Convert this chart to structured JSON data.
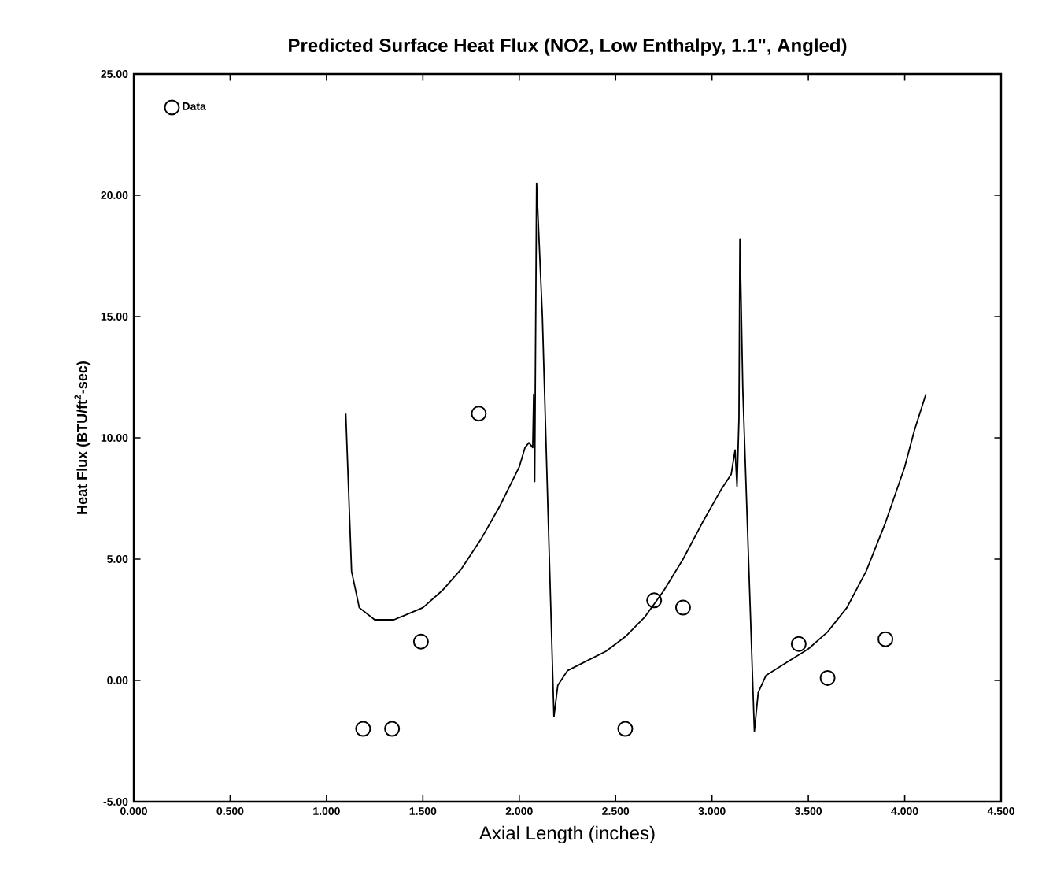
{
  "chart_data": {
    "type": "scatter",
    "title": "Predicted Surface Heat Flux (NO2, Low Enthalpy, 1.1\", Angled)",
    "xlabel": "Axial Length (inches)",
    "ylabel": "Heat Flux (BTU/ft$^{2}$-sec)",
    "xlim": [
      0,
      4.5
    ],
    "ylim": [
      -5,
      25
    ],
    "xticks": [
      {
        "value": 0,
        "label": "0.000"
      },
      {
        "value": 0.5,
        "label": "0.500"
      },
      {
        "value": 1,
        "label": "1.000"
      },
      {
        "value": 1.5,
        "label": "1.500"
      },
      {
        "value": 2,
        "label": "2.000"
      },
      {
        "value": 2.5,
        "label": "2.500"
      },
      {
        "value": 3,
        "label": "3.000"
      },
      {
        "value": 3.5,
        "label": "3.500"
      },
      {
        "value": 4,
        "label": "4.000"
      },
      {
        "value": 4.5,
        "label": "4.500"
      }
    ],
    "yticks": [
      {
        "value": -5,
        "label": "-5.00"
      },
      {
        "value": 0,
        "label": "0.00"
      },
      {
        "value": 5,
        "label": "5.00"
      },
      {
        "value": 10,
        "label": "10.00"
      },
      {
        "value": 15,
        "label": "15.00"
      },
      {
        "value": 20,
        "label": "20.00"
      },
      {
        "value": 25,
        "label": "25.00"
      }
    ],
    "legend": "top left",
    "grid": false,
    "series": [
      {
        "name": "Data",
        "marker": "circle",
        "color": "#000000",
        "x": [
          1.19,
          1.34,
          1.49,
          1.79,
          2.55,
          2.7,
          2.85,
          3.45,
          3.6,
          3.9
        ],
        "values": [
          -2.0,
          -2.0,
          1.6,
          11.0,
          -2.0,
          3.3,
          3.0,
          1.5,
          0.1,
          1.7
        ]
      },
      {
        "type": "line",
        "marker": "none",
        "line_style": "solid",
        "color": "#000000",
        "x": [
          1.1,
          1.13,
          1.17,
          1.25,
          1.35,
          1.5,
          1.6,
          1.7,
          1.8,
          1.9,
          2.0,
          2.03,
          2.05,
          2.07,
          2.075,
          2.08,
          2.09,
          2.12,
          2.18,
          2.2,
          2.25,
          2.35,
          2.45,
          2.55,
          2.65,
          2.75,
          2.85,
          2.95,
          3.05,
          3.1,
          3.12,
          3.13,
          3.14,
          3.145,
          3.16,
          3.22,
          3.24,
          3.28,
          3.4,
          3.5,
          3.6,
          3.7,
          3.8,
          3.9,
          4.0,
          4.05,
          4.11
        ],
        "values": [
          11.0,
          4.5,
          3.0,
          2.5,
          2.5,
          3.0,
          3.7,
          4.6,
          5.8,
          7.2,
          8.8,
          9.6,
          9.8,
          9.6,
          11.8,
          8.2,
          20.5,
          15.0,
          -1.5,
          -0.2,
          0.4,
          0.8,
          1.2,
          1.8,
          2.6,
          3.7,
          5.0,
          6.5,
          7.9,
          8.5,
          9.5,
          8.0,
          10.8,
          18.2,
          12.0,
          -2.1,
          -0.5,
          0.2,
          0.8,
          1.3,
          2.0,
          3.0,
          4.5,
          6.5,
          8.8,
          10.3,
          11.8
        ]
      }
    ]
  }
}
